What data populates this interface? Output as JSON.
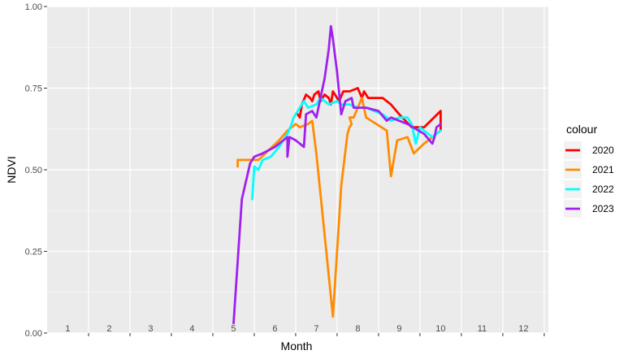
{
  "chart_data": {
    "type": "line",
    "xlabel": "Month",
    "ylabel": "NDVI",
    "xlim": [
      0.5,
      12.6
    ],
    "ylim": [
      0,
      1
    ],
    "x_tick_labels": [
      "1",
      "2",
      "3",
      "4",
      "5",
      "6",
      "7",
      "8",
      "9",
      "10",
      "11",
      "12"
    ],
    "y_ticks": [
      0,
      0.25,
      0.5,
      0.75,
      1
    ],
    "y_tick_labels": [
      "0.00",
      "0.25",
      "0.50",
      "0.75",
      "1.00"
    ],
    "grid": true,
    "legend": {
      "title": "colour",
      "placement": "right"
    },
    "series": [
      {
        "name": "2020",
        "color": "#ff0000",
        "points": [
          [
            6.55,
            0.67
          ],
          [
            6.6,
            0.66
          ],
          [
            6.65,
            0.7
          ],
          [
            6.75,
            0.73
          ],
          [
            6.85,
            0.72
          ],
          [
            6.9,
            0.71
          ],
          [
            6.95,
            0.73
          ],
          [
            7.05,
            0.74
          ],
          [
            7.1,
            0.71
          ],
          [
            7.2,
            0.73
          ],
          [
            7.3,
            0.72
          ],
          [
            7.35,
            0.7
          ],
          [
            7.4,
            0.74
          ],
          [
            7.55,
            0.71
          ],
          [
            7.65,
            0.74
          ],
          [
            7.8,
            0.74
          ],
          [
            8.0,
            0.75
          ],
          [
            8.1,
            0.72
          ],
          [
            8.15,
            0.74
          ],
          [
            8.25,
            0.72
          ],
          [
            8.6,
            0.72
          ],
          [
            8.8,
            0.7
          ],
          [
            9.0,
            0.67
          ],
          [
            9.3,
            0.63
          ],
          [
            9.6,
            0.63
          ],
          [
            10.0,
            0.68
          ],
          [
            10.0,
            0.62
          ]
        ]
      },
      {
        "name": "2021",
        "color": "#ff8c00",
        "points": [
          [
            5.1,
            0.51
          ],
          [
            5.1,
            0.53
          ],
          [
            5.2,
            0.53
          ],
          [
            5.4,
            0.53
          ],
          [
            5.6,
            0.53
          ],
          [
            5.85,
            0.56
          ],
          [
            6.1,
            0.59
          ],
          [
            6.3,
            0.62
          ],
          [
            6.5,
            0.64
          ],
          [
            6.6,
            0.63
          ],
          [
            6.8,
            0.64
          ],
          [
            6.9,
            0.65
          ],
          [
            7.0,
            0.55
          ],
          [
            7.4,
            0.05
          ],
          [
            7.6,
            0.45
          ],
          [
            7.75,
            0.61
          ],
          [
            7.8,
            0.63
          ],
          [
            7.85,
            0.64
          ],
          [
            7.8,
            0.66
          ],
          [
            7.9,
            0.66
          ],
          [
            8.1,
            0.72
          ],
          [
            8.2,
            0.66
          ],
          [
            8.7,
            0.62
          ],
          [
            8.8,
            0.48
          ],
          [
            8.95,
            0.59
          ],
          [
            9.2,
            0.6
          ],
          [
            9.35,
            0.55
          ],
          [
            9.6,
            0.58
          ],
          [
            10.0,
            0.62
          ]
        ]
      },
      {
        "name": "2022",
        "color": "#00ffff",
        "points": [
          [
            5.45,
            0.41
          ],
          [
            5.5,
            0.51
          ],
          [
            5.6,
            0.5
          ],
          [
            5.7,
            0.53
          ],
          [
            5.9,
            0.54
          ],
          [
            6.1,
            0.57
          ],
          [
            6.3,
            0.61
          ],
          [
            6.4,
            0.64
          ],
          [
            6.45,
            0.66
          ],
          [
            6.6,
            0.69
          ],
          [
            6.7,
            0.71
          ],
          [
            6.8,
            0.69
          ],
          [
            7.0,
            0.7
          ],
          [
            7.1,
            0.72
          ],
          [
            7.3,
            0.7
          ],
          [
            7.5,
            0.71
          ],
          [
            7.6,
            0.7
          ],
          [
            7.8,
            0.7
          ],
          [
            8.0,
            0.69
          ],
          [
            8.2,
            0.69
          ],
          [
            8.6,
            0.67
          ],
          [
            8.8,
            0.65
          ],
          [
            9.0,
            0.66
          ],
          [
            9.2,
            0.66
          ],
          [
            9.3,
            0.64
          ],
          [
            9.4,
            0.58
          ],
          [
            9.5,
            0.63
          ],
          [
            9.6,
            0.62
          ],
          [
            9.8,
            0.6
          ],
          [
            10.0,
            0.62
          ]
        ]
      },
      {
        "name": "2023",
        "color": "#a020f0",
        "points": [
          [
            5.0,
            0.03
          ],
          [
            5.2,
            0.41
          ],
          [
            5.4,
            0.52
          ],
          [
            5.5,
            0.54
          ],
          [
            5.7,
            0.55
          ],
          [
            6.0,
            0.57
          ],
          [
            6.2,
            0.59
          ],
          [
            6.3,
            0.6
          ],
          [
            6.3,
            0.54
          ],
          [
            6.35,
            0.6
          ],
          [
            6.5,
            0.59
          ],
          [
            6.7,
            0.57
          ],
          [
            6.75,
            0.67
          ],
          [
            6.9,
            0.68
          ],
          [
            7.0,
            0.66
          ],
          [
            7.1,
            0.72
          ],
          [
            7.2,
            0.78
          ],
          [
            7.3,
            0.87
          ],
          [
            7.35,
            0.94
          ],
          [
            7.4,
            0.9
          ],
          [
            7.5,
            0.8
          ],
          [
            7.6,
            0.67
          ],
          [
            7.7,
            0.71
          ],
          [
            7.85,
            0.72
          ],
          [
            7.9,
            0.69
          ],
          [
            8.2,
            0.69
          ],
          [
            8.5,
            0.68
          ],
          [
            8.7,
            0.65
          ],
          [
            8.8,
            0.66
          ],
          [
            9.2,
            0.64
          ],
          [
            9.6,
            0.61
          ],
          [
            9.8,
            0.58
          ],
          [
            9.85,
            0.6
          ],
          [
            9.9,
            0.63
          ],
          [
            10.0,
            0.64
          ]
        ]
      }
    ]
  }
}
